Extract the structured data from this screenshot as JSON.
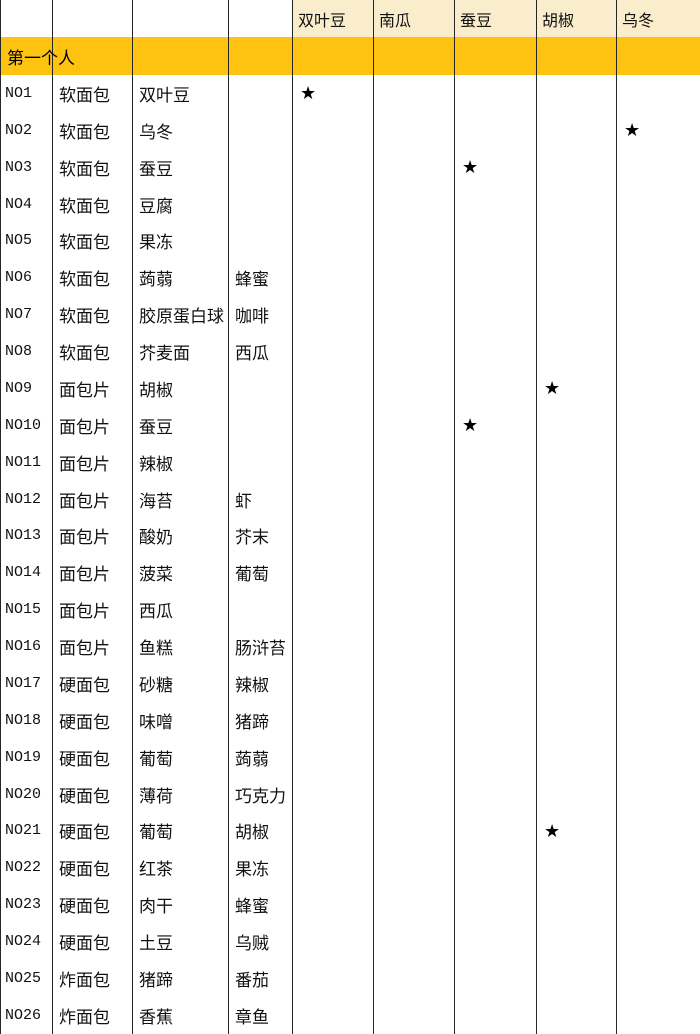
{
  "header": {
    "star_columns": [
      "双叶豆",
      "南瓜",
      "蚕豆",
      "胡椒",
      "乌冬"
    ]
  },
  "banner": {
    "title": "第一个人"
  },
  "star_glyph": "★",
  "colors": {
    "banner_bg": "#fec211",
    "header_bg": "#faedcb",
    "border": "#262626",
    "star": "#000000"
  },
  "rows": [
    {
      "id": "NO1",
      "bread": "软面包",
      "ing1": "双叶豆",
      "ing2": "",
      "stars": [
        1,
        0,
        0,
        0,
        0
      ]
    },
    {
      "id": "NO2",
      "bread": "软面包",
      "ing1": "乌冬",
      "ing2": "",
      "stars": [
        0,
        0,
        0,
        0,
        1
      ]
    },
    {
      "id": "NO3",
      "bread": "软面包",
      "ing1": "蚕豆",
      "ing2": "",
      "stars": [
        0,
        0,
        1,
        0,
        0
      ]
    },
    {
      "id": "NO4",
      "bread": "软面包",
      "ing1": "豆腐",
      "ing2": "",
      "stars": [
        0,
        0,
        0,
        0,
        0
      ]
    },
    {
      "id": "NO5",
      "bread": "软面包",
      "ing1": "果冻",
      "ing2": "",
      "stars": [
        0,
        0,
        0,
        0,
        0
      ]
    },
    {
      "id": "NO6",
      "bread": "软面包",
      "ing1": "蒟蒻",
      "ing2": "蜂蜜",
      "stars": [
        0,
        0,
        0,
        0,
        0
      ]
    },
    {
      "id": "NO7",
      "bread": "软面包",
      "ing1": "胶原蛋白球",
      "ing2": "咖啡",
      "stars": [
        0,
        0,
        0,
        0,
        0
      ]
    },
    {
      "id": "NO8",
      "bread": "软面包",
      "ing1": "芥麦面",
      "ing2": "西瓜",
      "stars": [
        0,
        0,
        0,
        0,
        0
      ]
    },
    {
      "id": "NO9",
      "bread": "面包片",
      "ing1": "胡椒",
      "ing2": "",
      "stars": [
        0,
        0,
        0,
        1,
        0
      ]
    },
    {
      "id": "NO10",
      "bread": "面包片",
      "ing1": "蚕豆",
      "ing2": "",
      "stars": [
        0,
        0,
        1,
        0,
        0
      ]
    },
    {
      "id": "NO11",
      "bread": "面包片",
      "ing1": "辣椒",
      "ing2": "",
      "stars": [
        0,
        0,
        0,
        0,
        0
      ]
    },
    {
      "id": "NO12",
      "bread": "面包片",
      "ing1": "海苔",
      "ing2": "虾",
      "stars": [
        0,
        0,
        0,
        0,
        0
      ]
    },
    {
      "id": "NO13",
      "bread": "面包片",
      "ing1": "酸奶",
      "ing2": "芥末",
      "stars": [
        0,
        0,
        0,
        0,
        0
      ]
    },
    {
      "id": "NO14",
      "bread": "面包片",
      "ing1": "菠菜",
      "ing2": "葡萄",
      "stars": [
        0,
        0,
        0,
        0,
        0
      ]
    },
    {
      "id": "NO15",
      "bread": "面包片",
      "ing1": "西瓜",
      "ing2": "",
      "stars": [
        0,
        0,
        0,
        0,
        0
      ]
    },
    {
      "id": "NO16",
      "bread": "面包片",
      "ing1": "鱼糕",
      "ing2": "肠浒苔",
      "stars": [
        0,
        0,
        0,
        0,
        0
      ]
    },
    {
      "id": "NO17",
      "bread": "硬面包",
      "ing1": "砂糖",
      "ing2": "辣椒",
      "stars": [
        0,
        0,
        0,
        0,
        0
      ]
    },
    {
      "id": "NO18",
      "bread": "硬面包",
      "ing1": "味噌",
      "ing2": "猪蹄",
      "stars": [
        0,
        0,
        0,
        0,
        0
      ]
    },
    {
      "id": "NO19",
      "bread": "硬面包",
      "ing1": "葡萄",
      "ing2": "蒟蒻",
      "stars": [
        0,
        0,
        0,
        0,
        0
      ]
    },
    {
      "id": "NO20",
      "bread": "硬面包",
      "ing1": "薄荷",
      "ing2": "巧克力",
      "stars": [
        0,
        0,
        0,
        0,
        0
      ]
    },
    {
      "id": "NO21",
      "bread": "硬面包",
      "ing1": "葡萄",
      "ing2": "胡椒",
      "stars": [
        0,
        0,
        0,
        1,
        0
      ]
    },
    {
      "id": "NO22",
      "bread": "硬面包",
      "ing1": "红茶",
      "ing2": "果冻",
      "stars": [
        0,
        0,
        0,
        0,
        0
      ]
    },
    {
      "id": "NO23",
      "bread": "硬面包",
      "ing1": "肉干",
      "ing2": "蜂蜜",
      "stars": [
        0,
        0,
        0,
        0,
        0
      ]
    },
    {
      "id": "NO24",
      "bread": "硬面包",
      "ing1": "土豆",
      "ing2": "乌贼",
      "stars": [
        0,
        0,
        0,
        0,
        0
      ]
    },
    {
      "id": "NO25",
      "bread": "炸面包",
      "ing1": "猪蹄",
      "ing2": "番茄",
      "stars": [
        0,
        0,
        0,
        0,
        0
      ]
    },
    {
      "id": "NO26",
      "bread": "炸面包",
      "ing1": "香蕉",
      "ing2": "章鱼",
      "stars": [
        0,
        0,
        0,
        0,
        0
      ]
    }
  ]
}
